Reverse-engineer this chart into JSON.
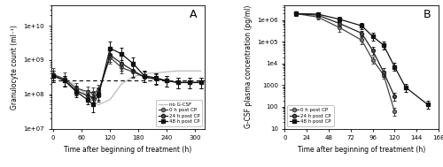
{
  "panel_A": {
    "title": "A",
    "xlabel": "Time after beginning of treatment (h)",
    "ylabel": "Granulocyte count (ml⁻¹)",
    "xlim": [
      -5,
      320
    ],
    "ylim": [
      10000000.0,
      40000000000.0
    ],
    "xticks": [
      0,
      60,
      120,
      180,
      240,
      300
    ],
    "dashed_baseline": 250000000.0,
    "no_gcsf": {
      "x": [
        0,
        12,
        24,
        48,
        72,
        84,
        96,
        120,
        144,
        168,
        192,
        216,
        240,
        264,
        288,
        312
      ],
      "y": [
        320000000.0,
        300000000.0,
        280000000.0,
        180000000.0,
        90000000.0,
        60000000.0,
        50000000.0,
        70000000.0,
        200000000.0,
        320000000.0,
        400000000.0,
        420000000.0,
        450000000.0,
        480000000.0,
        480000000.0,
        480000000.0
      ],
      "color": "#bbbbbb"
    },
    "series": [
      {
        "label": "0 h post CP",
        "marker": "o",
        "color": "#444444",
        "markerfacecolor": "#888888",
        "x": [
          0,
          24,
          48,
          72,
          84,
          96,
          120,
          144,
          168,
          192,
          216,
          240,
          264,
          288,
          312
        ],
        "y": [
          380000000.0,
          280000000.0,
          150000000.0,
          120000000.0,
          110000000.0,
          130000000.0,
          1200000000.0,
          600000000.0,
          450000000.0,
          320000000.0,
          280000000.0,
          250000000.0,
          220000000.0,
          220000000.0,
          220000000.0
        ],
        "yerr_lo": [
          150000000.0,
          100000000.0,
          50000000.0,
          40000000.0,
          40000000.0,
          50000000.0,
          400000000.0,
          200000000.0,
          150000000.0,
          100000000.0,
          80000000.0,
          80000000.0,
          70000000.0,
          70000000.0,
          70000000.0
        ],
        "yerr_hi": [
          200000000.0,
          150000000.0,
          60000000.0,
          50000000.0,
          50000000.0,
          60000000.0,
          800000000.0,
          300000000.0,
          200000000.0,
          150000000.0,
          100000000.0,
          100000000.0,
          90000000.0,
          90000000.0,
          90000000.0
        ]
      },
      {
        "label": "24 h post CP",
        "marker": "o",
        "color": "#222222",
        "markerfacecolor": "#555555",
        "x": [
          0,
          24,
          48,
          72,
          84,
          96,
          120,
          144,
          168,
          192,
          216,
          240,
          264,
          288,
          312
        ],
        "y": [
          350000000.0,
          250000000.0,
          130000000.0,
          90000000.0,
          80000000.0,
          110000000.0,
          1400000000.0,
          800000000.0,
          500000000.0,
          320000000.0,
          280000000.0,
          250000000.0,
          220000000.0,
          220000000.0,
          220000000.0
        ],
        "yerr_lo": [
          120000000.0,
          80000000.0,
          40000000.0,
          30000000.0,
          30000000.0,
          40000000.0,
          500000000.0,
          300000000.0,
          180000000.0,
          100000000.0,
          90000000.0,
          80000000.0,
          70000000.0,
          70000000.0,
          70000000.0
        ],
        "yerr_hi": [
          150000000.0,
          100000000.0,
          50000000.0,
          40000000.0,
          40000000.0,
          50000000.0,
          1000000000.0,
          500000000.0,
          250000000.0,
          150000000.0,
          120000000.0,
          100000000.0,
          90000000.0,
          90000000.0,
          90000000.0
        ]
      },
      {
        "label": "48 h post CP",
        "marker": "s",
        "color": "#111111",
        "markerfacecolor": "#111111",
        "x": [
          0,
          24,
          48,
          72,
          84,
          96,
          120,
          144,
          168,
          192,
          216,
          240,
          264,
          288,
          312
        ],
        "y": [
          350000000.0,
          250000000.0,
          120000000.0,
          70000000.0,
          50000000.0,
          100000000.0,
          2200000000.0,
          1500000000.0,
          800000000.0,
          350000000.0,
          300000000.0,
          250000000.0,
          220000000.0,
          220000000.0,
          220000000.0
        ],
        "yerr_lo": [
          120000000.0,
          80000000.0,
          40000000.0,
          20000000.0,
          20000000.0,
          40000000.0,
          800000000.0,
          500000000.0,
          300000000.0,
          120000000.0,
          100000000.0,
          80000000.0,
          70000000.0,
          70000000.0,
          70000000.0
        ],
        "yerr_hi": [
          150000000.0,
          100000000.0,
          50000000.0,
          30000000.0,
          30000000.0,
          50000000.0,
          1200000000.0,
          800000000.0,
          400000000.0,
          150000000.0,
          120000000.0,
          100000000.0,
          90000000.0,
          90000000.0,
          90000000.0
        ]
      }
    ]
  },
  "panel_B": {
    "title": "B",
    "xlabel": "Time after beginning of treatment (h)",
    "ylabel": "G-CSF plasma concentration (pg/ml)",
    "xlim": [
      0,
      168
    ],
    "ylim": [
      10,
      5000000.0
    ],
    "xticks": [
      0,
      24,
      48,
      72,
      96,
      120,
      144,
      168
    ],
    "series": [
      {
        "label": "0 h post CP",
        "marker": "o",
        "color": "#444444",
        "markerfacecolor": "#888888",
        "x": [
          12,
          36,
          60,
          84,
          96,
          108,
          120,
          132
        ],
        "y": [
          2000000.0,
          1400000.0,
          450000.0,
          120000.0,
          15000.0,
          3000.0,
          60.0,
          null
        ],
        "yerr_lo": [
          400000.0,
          300000.0,
          150000.0,
          40000.0,
          5000.0,
          1000.0,
          20.0,
          null
        ],
        "yerr_hi": [
          500000.0,
          400000.0,
          200000.0,
          50000.0,
          6000.0,
          1500.0,
          30.0,
          null
        ]
      },
      {
        "label": "24 h post CP",
        "marker": "o",
        "color": "#222222",
        "markerfacecolor": "#555555",
        "x": [
          12,
          36,
          60,
          84,
          96,
          108,
          120,
          132
        ],
        "y": [
          2000000.0,
          1700000.0,
          700000.0,
          250000.0,
          40000.0,
          4000.0,
          300.0,
          null
        ],
        "yerr_lo": [
          400000.0,
          300000.0,
          200000.0,
          70000.0,
          15000.0,
          1500.0,
          100.0,
          null
        ],
        "yerr_hi": [
          500000.0,
          400000.0,
          250000.0,
          80000.0,
          20000.0,
          2000.0,
          150.0,
          null
        ]
      },
      {
        "label": "48 h post CP",
        "marker": "s",
        "color": "#111111",
        "markerfacecolor": "#111111",
        "x": [
          12,
          36,
          60,
          84,
          96,
          108,
          120,
          132,
          156
        ],
        "y": [
          2000000.0,
          1900000.0,
          1100000.0,
          550000.0,
          180000.0,
          70000.0,
          7000.0,
          800.0,
          130.0
        ],
        "yerr_lo": [
          400000.0,
          300000.0,
          250000.0,
          150000.0,
          70000.0,
          25000.0,
          2500.0,
          300.0,
          50.0
        ],
        "yerr_hi": [
          500000.0,
          400000.0,
          300000.0,
          200000.0,
          90000.0,
          35000.0,
          3500.0,
          400.0,
          70.0
        ]
      }
    ]
  },
  "figsize": [
    5.0,
    1.89
  ],
  "dpi": 100
}
